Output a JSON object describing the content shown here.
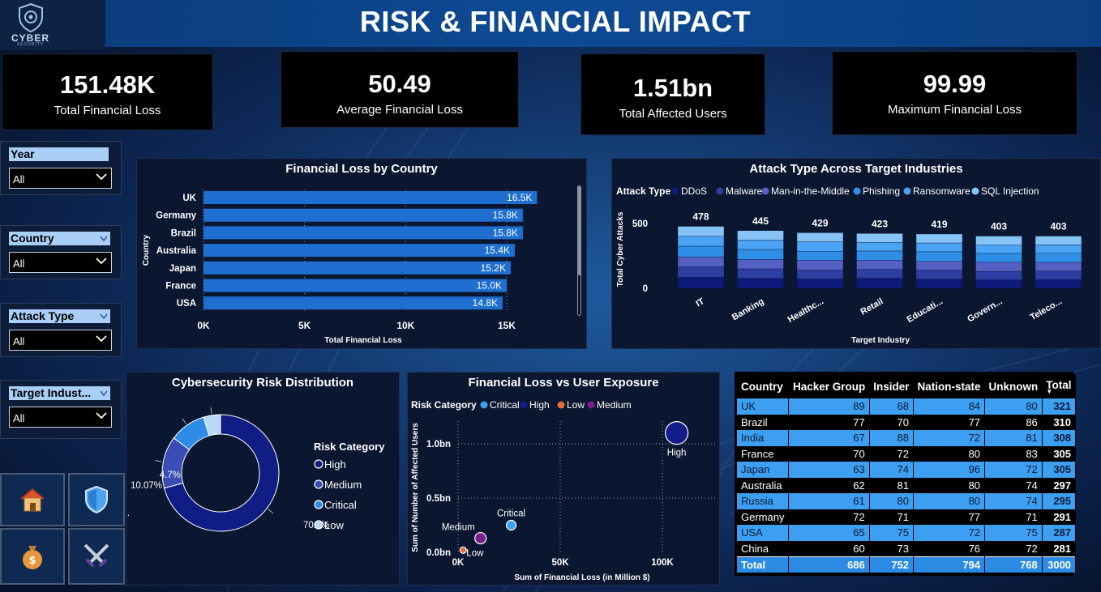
{
  "header": {
    "title": "RISK & FINANCIAL IMPACT",
    "logo_text": "CYBER",
    "logo_subtext": "SECURITY"
  },
  "kpis": [
    {
      "value": "151.48K",
      "label": "Total Financial Loss"
    },
    {
      "value": "50.49",
      "label": "Average Financial Loss"
    },
    {
      "value": "1.51bn",
      "label": "Total Affected Users"
    },
    {
      "value": "99.99",
      "label": "Maximum Financial Loss"
    }
  ],
  "slicers": [
    {
      "title": "Year",
      "value": "All"
    },
    {
      "title": "Country",
      "value": "All"
    },
    {
      "title": "Attack Type",
      "value": "All"
    },
    {
      "title": "Target Indust...",
      "value": "All"
    }
  ],
  "nav": [
    {
      "icon": "home-icon"
    },
    {
      "icon": "shield-icon"
    },
    {
      "icon": "money-bag-icon"
    },
    {
      "icon": "crossed-swords-icon"
    }
  ],
  "colors": {
    "ddos": "#0d1a7a",
    "malware": "#2d3fa3",
    "mitm": "#5460c4",
    "phishing": "#2f8fe8",
    "ransomware": "#4aa3f5",
    "sql": "#86c3f7",
    "bar": "#1e6fd0",
    "risk_high": "#0f1d84",
    "risk_medium": "#3a4cb6",
    "risk_critical": "#2d8ce6",
    "risk_low": "#b9d9f7",
    "scatter_critical": "#3f9ff0",
    "scatter_high": "#121d8a",
    "scatter_low": "#e0713a",
    "scatter_medium": "#7a1d8e"
  },
  "chart_data": [
    {
      "type": "bar",
      "orientation": "horizontal",
      "title": "Financial Loss by Country",
      "xlabel": "Total Financial Loss",
      "ylabel": "Country",
      "categories": [
        "UK",
        "Germany",
        "Brazil",
        "Australia",
        "Japan",
        "France",
        "USA"
      ],
      "values": [
        16500,
        15800,
        15800,
        15400,
        15200,
        15000,
        14800
      ],
      "data_labels": [
        "16.5K",
        "15.8K",
        "15.8K",
        "15.4K",
        "15.2K",
        "15.0K",
        "14.8K"
      ],
      "xticks": [
        "0K",
        "5K",
        "10K",
        "15K"
      ],
      "xlim": [
        0,
        17000
      ]
    },
    {
      "type": "bar",
      "stacked": true,
      "title": "Attack Type Across Target Industries",
      "xlabel": "Target Industry",
      "ylabel": "Total Cyber Attacks",
      "legend_title": "Attack Type",
      "legend_position": "top",
      "categories": [
        "IT",
        "Banking",
        "Healthc...",
        "Retail",
        "Educati...",
        "Govern...",
        "Teleco..."
      ],
      "totals": [
        478,
        445,
        429,
        423,
        419,
        403,
        403
      ],
      "yticks": [
        "0",
        "500"
      ],
      "ylim": [
        0,
        500
      ],
      "series": [
        {
          "name": "DDoS",
          "values": [
            85,
            76,
            72,
            78,
            70,
            65,
            68
          ]
        },
        {
          "name": "Malware",
          "values": [
            80,
            74,
            70,
            68,
            72,
            66,
            64
          ]
        },
        {
          "name": "Man-in-the-Middle",
          "values": [
            78,
            72,
            74,
            70,
            66,
            70,
            68
          ]
        },
        {
          "name": "Phishing",
          "values": [
            82,
            78,
            70,
            72,
            74,
            68,
            70
          ]
        },
        {
          "name": "Ransomware",
          "values": [
            76,
            72,
            73,
            66,
            68,
            64,
            66
          ]
        },
        {
          "name": "SQL Injection",
          "values": [
            77,
            73,
            70,
            69,
            69,
            70,
            67
          ]
        }
      ]
    },
    {
      "type": "pie",
      "donut": true,
      "title": "Cybersecurity Risk Distribution",
      "legend_title": "Risk Category",
      "legend_position": "right",
      "legend": [
        "High",
        "Medium",
        "Critical",
        "Low"
      ],
      "slices": [
        {
          "name": "High",
          "value": 70.8,
          "label": "70.8%"
        },
        {
          "name": "Medium",
          "value": 14.43,
          "label": "14...."
        },
        {
          "name": "Critical",
          "value": 10.07,
          "label": "10.07%"
        },
        {
          "name": "Low",
          "value": 4.7,
          "label": "4.7%"
        }
      ]
    },
    {
      "type": "scatter",
      "title": "Financial Loss vs User Exposure",
      "xlabel": "Sum of Financial Loss (in Million $)",
      "ylabel": "Sum of Number of Affected Users",
      "legend_title": "Risk Category",
      "legend_position": "top",
      "legend": [
        "Critical",
        "High",
        "Low",
        "Medium"
      ],
      "xticks": [
        "0K",
        "50K",
        "100K"
      ],
      "yticks": [
        "0.0bn",
        "0.5bn",
        "1.0bn"
      ],
      "xlim": [
        0,
        120000
      ],
      "ylim": [
        0,
        1.2
      ],
      "points": [
        {
          "name": "High",
          "x": 107000,
          "y": 1.1,
          "label": "High"
        },
        {
          "name": "Critical",
          "x": 26000,
          "y": 0.25,
          "label": "Critical"
        },
        {
          "name": "Medium",
          "x": 11000,
          "y": 0.13,
          "label": "Medium"
        },
        {
          "name": "Low",
          "x": 2500,
          "y": 0.02,
          "label": "Low"
        }
      ]
    }
  ],
  "table": {
    "headers": [
      "Country",
      "Hacker Group",
      "Insider",
      "Nation-state",
      "Unknown",
      "Total"
    ],
    "rows": [
      [
        "UK",
        "89",
        "68",
        "84",
        "80",
        "321"
      ],
      [
        "Brazil",
        "77",
        "70",
        "77",
        "86",
        "310"
      ],
      [
        "India",
        "67",
        "88",
        "72",
        "81",
        "308"
      ],
      [
        "France",
        "70",
        "72",
        "80",
        "83",
        "305"
      ],
      [
        "Japan",
        "63",
        "74",
        "96",
        "72",
        "305"
      ],
      [
        "Australia",
        "62",
        "81",
        "80",
        "74",
        "297"
      ],
      [
        "Russia",
        "61",
        "80",
        "80",
        "74",
        "295"
      ],
      [
        "Germany",
        "72",
        "71",
        "77",
        "71",
        "291"
      ],
      [
        "USA",
        "65",
        "75",
        "72",
        "75",
        "287"
      ],
      [
        "China",
        "60",
        "73",
        "76",
        "72",
        "281"
      ]
    ],
    "total": [
      "Total",
      "686",
      "752",
      "794",
      "768",
      "3000"
    ]
  }
}
